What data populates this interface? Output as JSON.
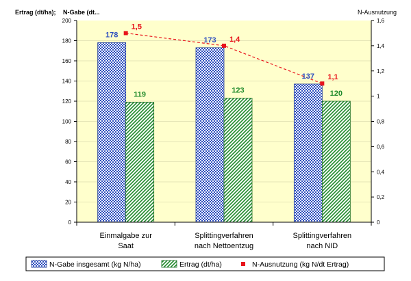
{
  "chart_data": {
    "type": "bar",
    "left_axis_title": "Ertrag (dt/ha);",
    "left_axis_title_2": "N-Gabe (dt...",
    "right_axis_title": "N-Ausnutzung",
    "categories": [
      [
        "Einmalgabe zur",
        "Saat"
      ],
      [
        "Splittingverfahren",
        "nach Nettoentzug"
      ],
      [
        "Splittingverfahren",
        "nach NID"
      ]
    ],
    "ylim_left": [
      0,
      200
    ],
    "yticks_left": [
      "0",
      "20",
      "40",
      "60",
      "80",
      "100",
      "120",
      "140",
      "160",
      "180",
      "200"
    ],
    "ylim_right": [
      0,
      1.6
    ],
    "yticks_right": [
      "0",
      "0,2",
      "0,4",
      "0,6",
      "0,8",
      "1",
      "1,2",
      "1,4",
      "1,6"
    ],
    "series": [
      {
        "name": "N-Gabe insgesamt (kg N/ha)",
        "kind": "bar",
        "axis": "left",
        "color": "#2e4fbf",
        "values": [
          178,
          173,
          137
        ],
        "labels": [
          "178",
          "173",
          "137"
        ]
      },
      {
        "name": "Ertrag (dt/ha)",
        "kind": "bar",
        "axis": "left",
        "color": "#1f8a2a",
        "values": [
          119,
          123,
          120
        ],
        "labels": [
          "119",
          "123",
          "120"
        ]
      },
      {
        "name": "N-Ausnutzung (kg N/dt Ertrag)",
        "kind": "line",
        "axis": "right",
        "color": "#e8141b",
        "values": [
          1.5,
          1.4,
          1.1
        ],
        "labels": [
          "1,5",
          "1,4",
          "1,1"
        ]
      }
    ],
    "plot_background": "#ffffcc",
    "legend_position": "bottom"
  }
}
